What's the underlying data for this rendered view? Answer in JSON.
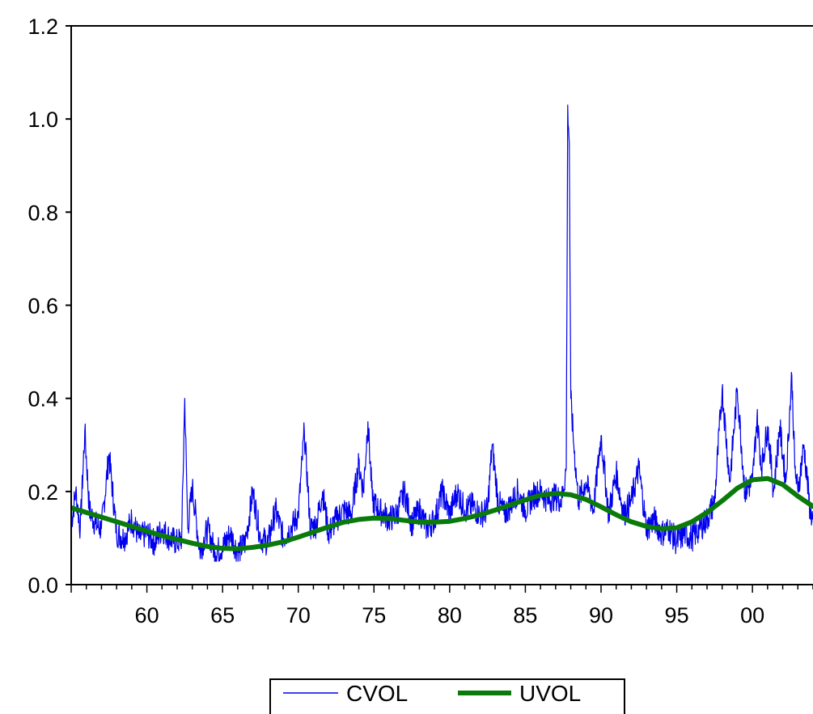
{
  "chart_data": {
    "type": "line",
    "title": "",
    "xlabel": "",
    "ylabel": "",
    "x_range": [
      1955,
      2004
    ],
    "ylim": [
      0.0,
      1.2
    ],
    "y_ticks": [
      "0.0",
      "0.2",
      "0.4",
      "0.6",
      "0.8",
      "1.0",
      "1.2"
    ],
    "x_ticks": [
      "60",
      "65",
      "70",
      "75",
      "80",
      "85",
      "90",
      "95",
      "00"
    ],
    "grid": false,
    "legend_position": "bottom-center",
    "series": [
      {
        "name": "CVOL",
        "color": "#0000ee",
        "style": "thin-noisy",
        "x": [
          1955.0,
          1955.3,
          1955.6,
          1955.9,
          1956.2,
          1956.6,
          1957.0,
          1957.5,
          1958.0,
          1958.5,
          1959.0,
          1959.5,
          1960.0,
          1960.5,
          1961.0,
          1961.5,
          1962.0,
          1962.3,
          1962.5,
          1962.7,
          1963.0,
          1963.5,
          1964.0,
          1964.5,
          1965.0,
          1965.5,
          1966.0,
          1966.5,
          1967.0,
          1967.5,
          1968.0,
          1968.5,
          1969.0,
          1969.5,
          1970.0,
          1970.4,
          1970.8,
          1971.2,
          1971.6,
          1972.0,
          1972.5,
          1973.0,
          1973.5,
          1974.0,
          1974.3,
          1974.6,
          1974.9,
          1975.3,
          1975.7,
          1976.0,
          1976.5,
          1977.0,
          1977.5,
          1978.0,
          1978.5,
          1979.0,
          1979.5,
          1980.0,
          1980.5,
          1981.0,
          1981.5,
          1982.0,
          1982.5,
          1982.8,
          1983.2,
          1983.6,
          1984.0,
          1984.5,
          1985.0,
          1985.5,
          1986.0,
          1986.5,
          1987.0,
          1987.4,
          1987.7,
          1987.8,
          1987.9,
          1988.0,
          1988.2,
          1988.5,
          1989.0,
          1989.5,
          1990.0,
          1990.5,
          1991.0,
          1991.5,
          1992.0,
          1992.5,
          1993.0,
          1993.5,
          1994.0,
          1994.5,
          1995.0,
          1995.5,
          1996.0,
          1996.5,
          1997.0,
          1997.5,
          1998.0,
          1998.5,
          1999.0,
          1999.5,
          2000.0,
          2000.3,
          2000.6,
          2001.0,
          2001.4,
          2001.8,
          2002.2,
          2002.6,
          2002.8,
          2003.0,
          2003.4,
          2003.8,
          2004.0
        ],
        "y": [
          0.13,
          0.2,
          0.12,
          0.33,
          0.16,
          0.13,
          0.12,
          0.28,
          0.11,
          0.1,
          0.14,
          0.1,
          0.11,
          0.09,
          0.12,
          0.1,
          0.09,
          0.1,
          0.4,
          0.12,
          0.21,
          0.07,
          0.12,
          0.07,
          0.08,
          0.11,
          0.07,
          0.09,
          0.2,
          0.1,
          0.09,
          0.16,
          0.1,
          0.12,
          0.15,
          0.33,
          0.12,
          0.13,
          0.2,
          0.11,
          0.14,
          0.16,
          0.15,
          0.26,
          0.2,
          0.35,
          0.18,
          0.16,
          0.15,
          0.14,
          0.15,
          0.2,
          0.13,
          0.16,
          0.12,
          0.14,
          0.2,
          0.15,
          0.2,
          0.16,
          0.17,
          0.15,
          0.16,
          0.3,
          0.18,
          0.15,
          0.17,
          0.2,
          0.16,
          0.19,
          0.2,
          0.18,
          0.19,
          0.18,
          0.25,
          1.03,
          0.95,
          0.4,
          0.3,
          0.18,
          0.22,
          0.16,
          0.32,
          0.15,
          0.24,
          0.15,
          0.18,
          0.25,
          0.12,
          0.14,
          0.11,
          0.12,
          0.09,
          0.11,
          0.1,
          0.12,
          0.14,
          0.18,
          0.42,
          0.22,
          0.42,
          0.2,
          0.22,
          0.36,
          0.25,
          0.34,
          0.2,
          0.34,
          0.22,
          0.45,
          0.25,
          0.2,
          0.3,
          0.16,
          0.14
        ]
      },
      {
        "name": "UVOL",
        "color": "#0a7a0a",
        "style": "thick-smooth",
        "x": [
          1955,
          1956,
          1957,
          1958,
          1959,
          1960,
          1961,
          1962,
          1963,
          1964,
          1965,
          1966,
          1967,
          1968,
          1969,
          1970,
          1971,
          1972,
          1973,
          1974,
          1975,
          1976,
          1977,
          1978,
          1979,
          1980,
          1981,
          1982,
          1983,
          1984,
          1985,
          1986,
          1987,
          1988,
          1989,
          1990,
          1991,
          1992,
          1993,
          1994,
          1995,
          1996,
          1997,
          1998,
          1999,
          2000,
          2001,
          2002,
          2003,
          2004
        ],
        "y": [
          0.165,
          0.155,
          0.145,
          0.135,
          0.125,
          0.115,
          0.105,
          0.097,
          0.089,
          0.082,
          0.078,
          0.077,
          0.08,
          0.085,
          0.092,
          0.102,
          0.113,
          0.124,
          0.134,
          0.14,
          0.143,
          0.142,
          0.138,
          0.134,
          0.134,
          0.136,
          0.142,
          0.15,
          0.16,
          0.171,
          0.182,
          0.192,
          0.196,
          0.193,
          0.183,
          0.167,
          0.15,
          0.135,
          0.125,
          0.12,
          0.122,
          0.135,
          0.155,
          0.18,
          0.207,
          0.225,
          0.228,
          0.215,
          0.19,
          0.168
        ]
      }
    ]
  }
}
